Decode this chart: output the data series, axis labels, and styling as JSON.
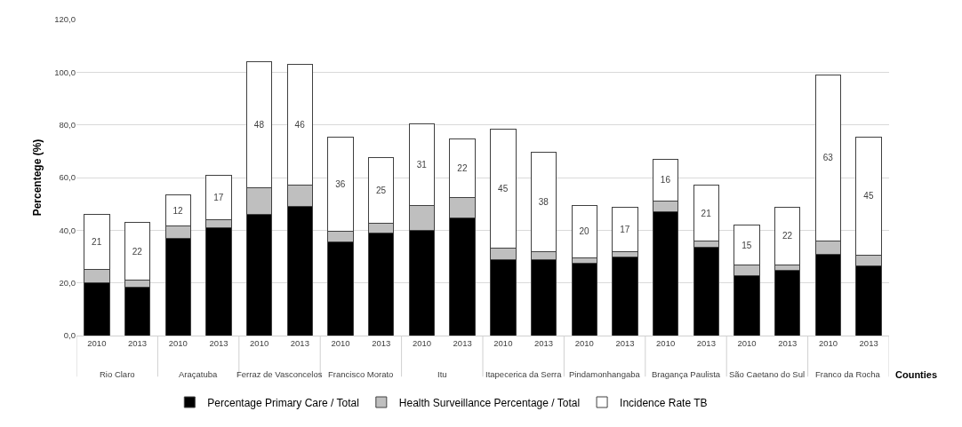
{
  "chart_data": {
    "type": "bar",
    "stacked": true,
    "ylabel": "Percentege (%)",
    "xlabel": "Counties",
    "categories": [
      "2010",
      "2013",
      "2010",
      "2013",
      "2010",
      "2013",
      "2010",
      "2013",
      "2010",
      "2013",
      "2010",
      "2013",
      "2010",
      "2013",
      "2010",
      "2013",
      "2010",
      "2013",
      "2010",
      "2013"
    ],
    "annotations": [
      "Rio Claro",
      "Araçatuba",
      "Ferraz de Vasconcelos",
      "Francisco Morato",
      "Itu",
      "Itapecerica da Serra",
      "Pindamonhangaba",
      "Bragança Paulista",
      "São Caetano do Sul",
      "Franco da Rocha"
    ],
    "series": [
      {
        "name": "Percentage Primary Care / Total",
        "color": "#000000",
        "values": [
          20.2,
          18.5,
          37,
          41,
          46,
          49,
          35.5,
          39,
          40,
          44.5,
          28.7,
          28.7,
          27.5,
          29.8,
          47,
          33.5,
          22.8,
          24.8,
          31,
          26.5
        ]
      },
      {
        "name": "Health Surveillance Percentage / Total",
        "color": "#bfbfbf",
        "values": [
          4.8,
          2.5,
          4.5,
          3,
          10,
          8,
          4,
          3.5,
          9.5,
          8,
          4.6,
          3,
          2,
          2,
          4,
          2.5,
          4,
          2,
          5,
          4
        ]
      },
      {
        "name": "Incidence Rate TB",
        "color": "#ffffff",
        "values": [
          21,
          22,
          12,
          17,
          48,
          46,
          36,
          25,
          31,
          22,
          45,
          38,
          20,
          17,
          16,
          21,
          15,
          22,
          63,
          45
        ],
        "value_labels": [
          "21",
          "22",
          "12",
          "17",
          "48",
          "46",
          "36",
          "25",
          "31",
          "22",
          "45",
          "38",
          "20",
          "17",
          "16",
          "21",
          "15",
          "22",
          "63",
          "45"
        ]
      }
    ],
    "ylim": [
      0,
      120
    ],
    "yticks": [
      {
        "value": 0,
        "label": "0,0"
      },
      {
        "value": 20,
        "label": "20,0"
      },
      {
        "value": 40,
        "label": "40,0"
      },
      {
        "value": 60,
        "label": "60,0"
      },
      {
        "value": 80,
        "label": "80,0"
      },
      {
        "value": 100,
        "label": "100,0"
      },
      {
        "value": 120,
        "label": "120,0"
      }
    ],
    "grid": "y",
    "legend": "bottom"
  }
}
